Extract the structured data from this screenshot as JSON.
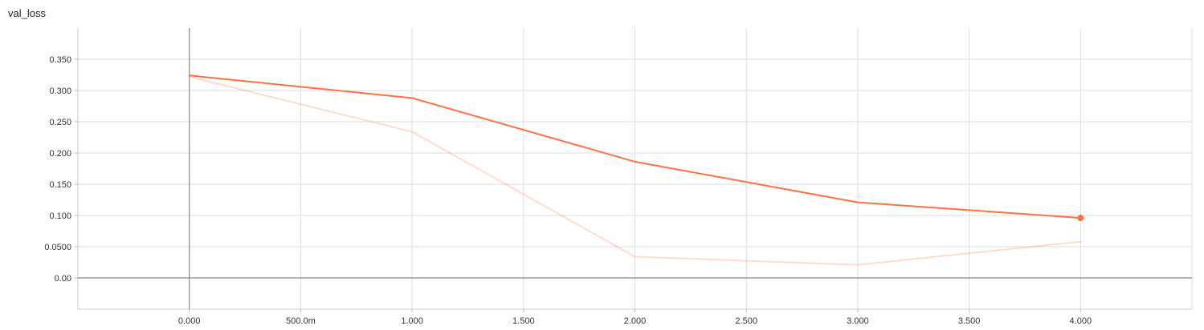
{
  "chart_data": {
    "type": "line",
    "title": "val_loss",
    "xlabel": "",
    "ylabel": "",
    "xlim": [
      -0.5,
      4.5
    ],
    "ylim": [
      -0.05,
      0.4
    ],
    "x_ticks": [
      {
        "value": 0,
        "label": "0.000"
      },
      {
        "value": 0.5,
        "label": "500.0m"
      },
      {
        "value": 1,
        "label": "1.000"
      },
      {
        "value": 1.5,
        "label": "1.500"
      },
      {
        "value": 2,
        "label": "2.000"
      },
      {
        "value": 2.5,
        "label": "2.500"
      },
      {
        "value": 3,
        "label": "3.000"
      },
      {
        "value": 3.5,
        "label": "3.500"
      },
      {
        "value": 4,
        "label": "4.000"
      }
    ],
    "y_ticks": [
      {
        "value": 0,
        "label": "0.00"
      },
      {
        "value": 0.05,
        "label": "0.0500"
      },
      {
        "value": 0.1,
        "label": "0.100"
      },
      {
        "value": 0.15,
        "label": "0.150"
      },
      {
        "value": 0.2,
        "label": "0.200"
      },
      {
        "value": 0.25,
        "label": "0.250"
      },
      {
        "value": 0.3,
        "label": "0.300"
      },
      {
        "value": 0.35,
        "label": "0.350"
      }
    ],
    "grid": true,
    "series": [
      {
        "role": "raw",
        "color": "#ff7043",
        "opacity": 0.25,
        "x": [
          0,
          1,
          2,
          3,
          4
        ],
        "y": [
          0.322,
          0.234,
          0.034,
          0.021,
          0.058
        ]
      },
      {
        "role": "smoothed",
        "color": "#ff7043",
        "opacity": 1,
        "x": [
          0,
          1,
          2,
          3,
          4
        ],
        "y": [
          0.324,
          0.288,
          0.186,
          0.121,
          0.096
        ],
        "highlight_last_point": true
      }
    ]
  }
}
